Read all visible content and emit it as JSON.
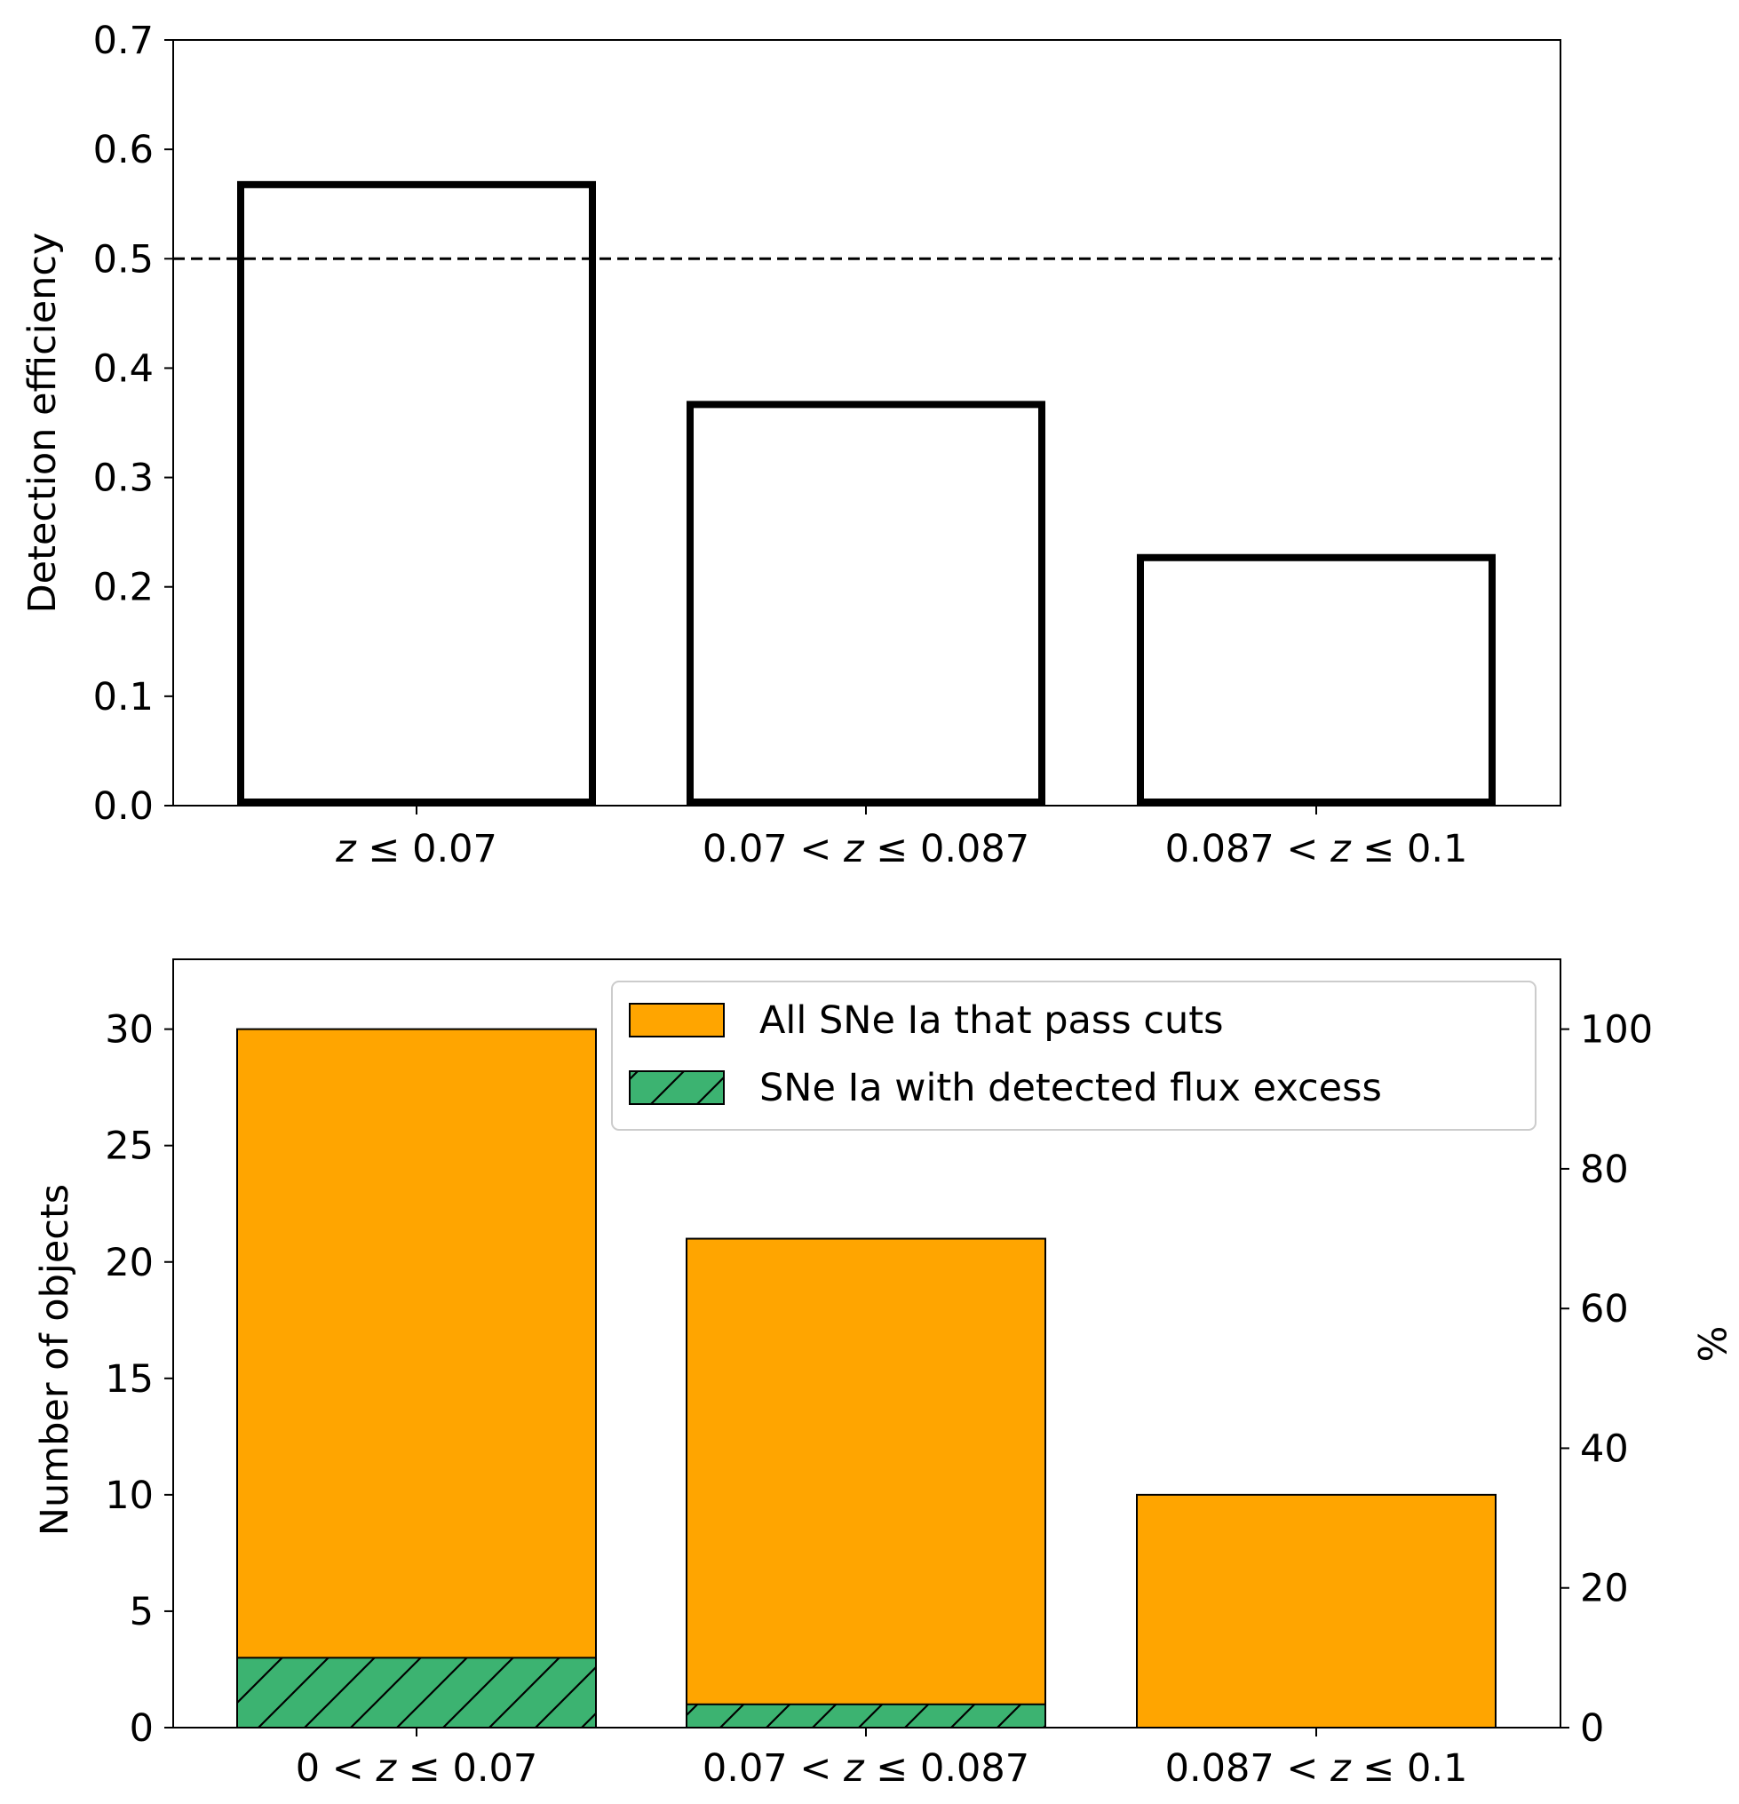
{
  "chart_data": [
    {
      "type": "bar",
      "title": "",
      "categories": [
        [
          "z",
          " ≤ 0.07"
        ],
        [
          "0.07 < ",
          "z",
          " ≤ 0.087"
        ],
        [
          "0.087 < ",
          "z",
          " ≤ 0.1"
        ]
      ],
      "values": [
        0.571,
        0.37,
        0.23
      ],
      "ylabel": "Detection efficiency",
      "xlabel": "",
      "ylim": [
        0,
        0.7
      ],
      "yticks": [
        0.0,
        0.1,
        0.2,
        0.3,
        0.4,
        0.5,
        0.6,
        0.7
      ],
      "ytick_labels": [
        "0.0",
        "0.1",
        "0.2",
        "0.3",
        "0.4",
        "0.5",
        "0.6",
        "0.7"
      ],
      "reference_line": {
        "y": 0.5,
        "style": "dashed"
      },
      "bar_style": "outline",
      "bar_color": "#000000"
    },
    {
      "type": "bar",
      "title": "",
      "categories": [
        [
          "0 < ",
          "z",
          " ≤  0.07"
        ],
        [
          "0.07 < ",
          "z",
          " ≤  0.087"
        ],
        [
          "0.087 < ",
          "z",
          " ≤  0.1"
        ]
      ],
      "series": [
        {
          "name": "All SNe Ia that pass cuts",
          "values": [
            30,
            21,
            10
          ],
          "color": "#ffa500",
          "hatch": false
        },
        {
          "name": "SNe Ia with detected flux excess",
          "values": [
            3,
            1,
            0
          ],
          "color": "#3cb371",
          "hatch": true
        }
      ],
      "ylabel": "Number of objects",
      "ylim": [
        0,
        33
      ],
      "yticks": [
        0,
        5,
        10,
        15,
        20,
        25,
        30
      ],
      "ytick_labels": [
        "0",
        "5",
        "10",
        "15",
        "20",
        "25",
        "30"
      ],
      "y2label": "%",
      "y2lim": [
        0,
        110
      ],
      "y2ticks": [
        0,
        20,
        40,
        60,
        80,
        100
      ],
      "y2tick_labels": [
        "0",
        "20",
        "40",
        "60",
        "80",
        "100"
      ],
      "legend_placement": "top-right"
    }
  ]
}
